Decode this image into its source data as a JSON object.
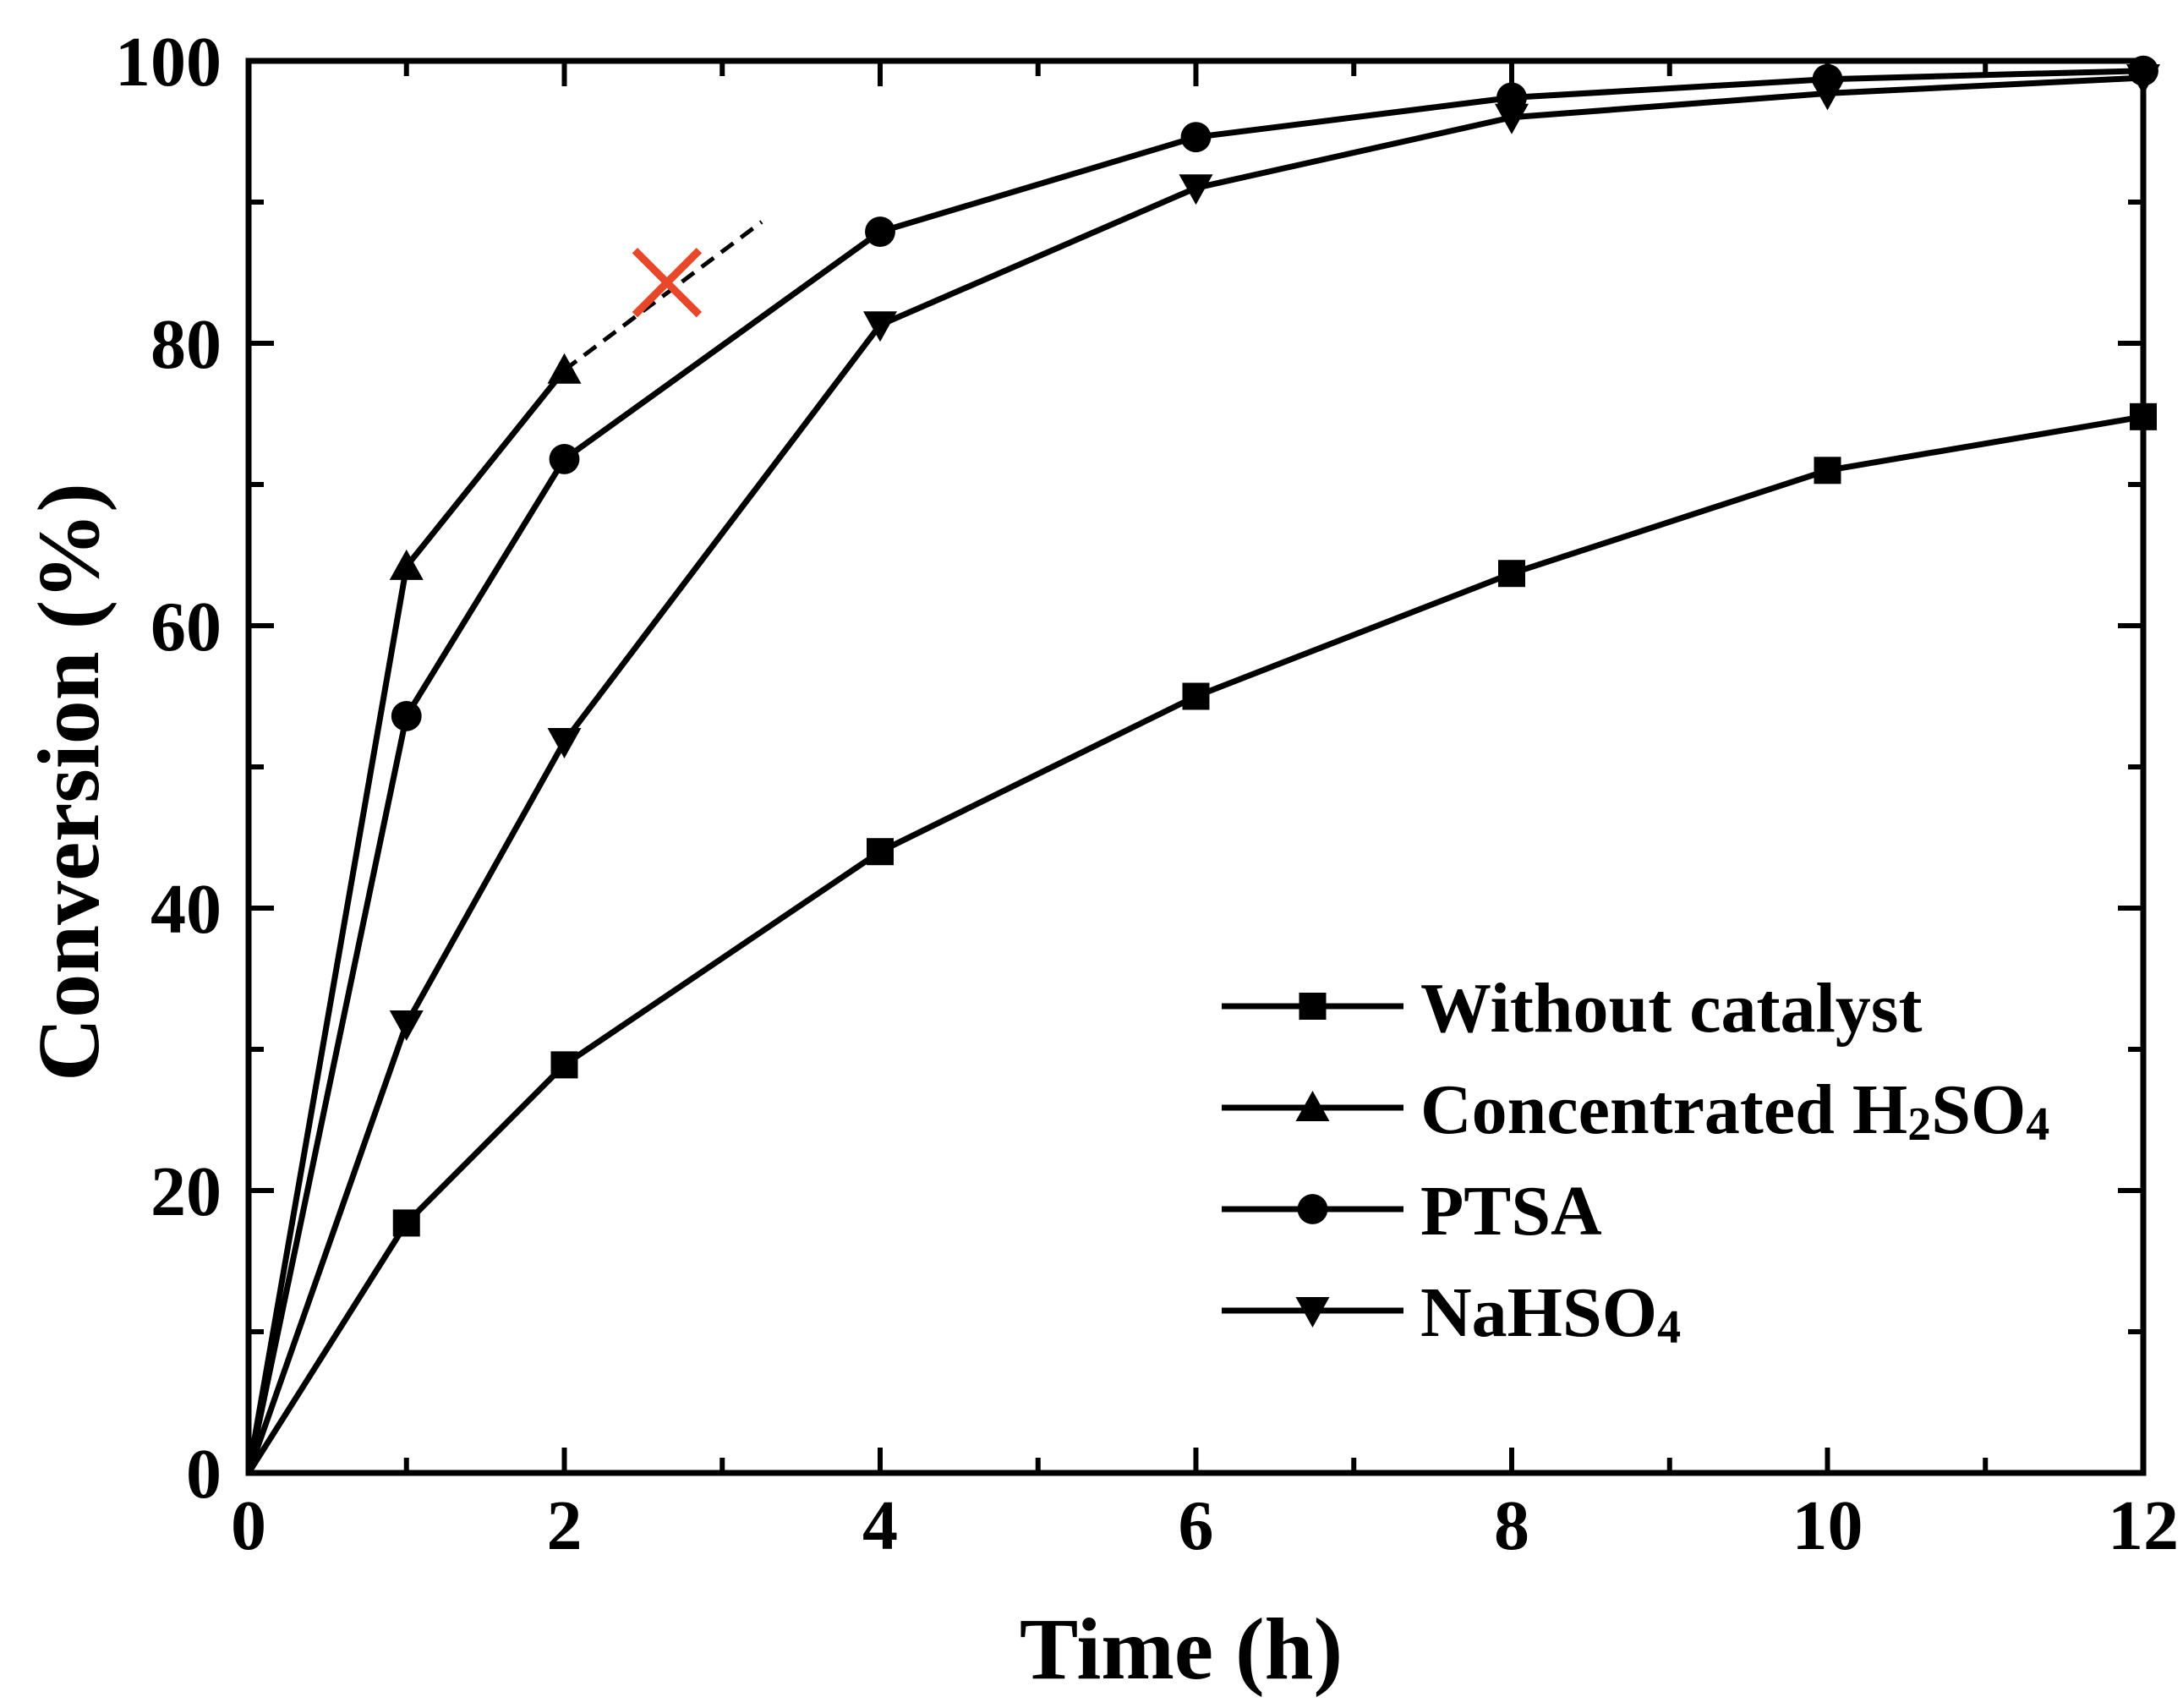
{
  "chart_data": {
    "type": "line",
    "xlabel": "Time (h)",
    "ylabel": "Conversion (%)",
    "xlim": [
      0,
      12
    ],
    "ylim": [
      0,
      100
    ],
    "x_ticks": [
      0,
      2,
      4,
      6,
      8,
      10,
      12
    ],
    "x_minor_ticks": [
      1,
      3,
      5,
      7,
      9,
      11
    ],
    "y_ticks": [
      0,
      20,
      40,
      60,
      80,
      100
    ],
    "y_minor_ticks": [
      10,
      30,
      50,
      70,
      90
    ],
    "grid": false,
    "legend_position": "bottom-right",
    "series": [
      {
        "name": "Without catalyst",
        "marker": "square",
        "x": [
          0,
          1,
          2,
          4,
          6,
          8,
          10,
          12
        ],
        "y": [
          0,
          17.7,
          28.9,
          44.0,
          55.0,
          63.7,
          71.0,
          74.8
        ]
      },
      {
        "name": "Concentrated H2SO4",
        "name_parts": [
          "Concentrated H",
          "2",
          "SO",
          "4"
        ],
        "marker": "triangle-up",
        "x": [
          0,
          1,
          2
        ],
        "y": [
          0,
          64.2,
          78.1
        ]
      },
      {
        "name": "PTSA",
        "marker": "circle",
        "x": [
          0,
          1,
          2,
          4,
          6,
          8,
          10,
          12
        ],
        "y": [
          0,
          53.6,
          71.8,
          87.9,
          94.6,
          97.4,
          98.7,
          99.3
        ]
      },
      {
        "name": "NaHSO4",
        "name_parts": [
          "NaHSO",
          "4"
        ],
        "marker": "triangle-down",
        "x": [
          0,
          1,
          2,
          4,
          6,
          8,
          10,
          12
        ],
        "y": [
          0,
          31.8,
          51.8,
          81.3,
          91.0,
          96.0,
          97.7,
          98.8
        ]
      }
    ],
    "annotations": [
      {
        "type": "dashed-extension",
        "series": "Concentrated H2SO4",
        "from": [
          2,
          78.1
        ],
        "to": [
          3.25,
          88.6
        ]
      },
      {
        "type": "cross-marker",
        "color": "#e8472a",
        "at": [
          2.65,
          84.3
        ]
      }
    ]
  }
}
